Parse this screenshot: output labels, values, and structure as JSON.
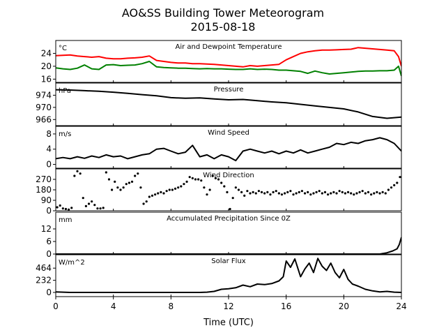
{
  "figure": {
    "title_line1": "AO&SS Building Tower Meteorogram",
    "title_line2": "2015-08-18",
    "xlabel": "Time (UTC)",
    "xlim": [
      0,
      24
    ],
    "xticks": [
      0,
      4,
      8,
      12,
      16,
      20,
      24
    ]
  },
  "chart_data": [
    {
      "type": "line",
      "title": "Air and Dewpoint Temperature",
      "unit": "°C",
      "ylim": [
        15,
        28
      ],
      "yticks": [
        16,
        20,
        24
      ],
      "series": [
        {
          "color": "#ff0000",
          "x": [
            0,
            0.5,
            1,
            1.5,
            2,
            2.5,
            3,
            3.5,
            4,
            4.5,
            5,
            5.5,
            6,
            6.5,
            7,
            7.5,
            8,
            8.5,
            9,
            9.5,
            10,
            10.5,
            11,
            11.5,
            12,
            12.5,
            13,
            13.5,
            14,
            14.5,
            15,
            15.5,
            16,
            16.5,
            17,
            17.5,
            18,
            18.5,
            19,
            19.5,
            20,
            20.5,
            21,
            21.5,
            22,
            22.5,
            23,
            23.5,
            23.8,
            24
          ],
          "y": [
            23.3,
            23.4,
            23.5,
            23.2,
            23.0,
            22.8,
            23.0,
            22.5,
            22.3,
            22.3,
            22.5,
            22.6,
            22.8,
            23.2,
            21.8,
            21.5,
            21.2,
            21.0,
            21.0,
            20.8,
            20.8,
            20.7,
            20.6,
            20.4,
            20.2,
            20.0,
            19.8,
            20.2,
            20.0,
            20.2,
            20.4,
            20.6,
            22.0,
            23.0,
            24.0,
            24.5,
            24.8,
            25.0,
            25.0,
            25.1,
            25.2,
            25.3,
            25.8,
            25.6,
            25.4,
            25.2,
            25.0,
            24.8,
            23.0,
            20.0
          ]
        },
        {
          "color": "#008000",
          "x": [
            0,
            0.5,
            1,
            1.5,
            2,
            2.5,
            3,
            3.5,
            4,
            4.5,
            5,
            5.5,
            6,
            6.5,
            7,
            7.5,
            8,
            8.5,
            9,
            9.5,
            10,
            10.5,
            11,
            11.5,
            12,
            12.5,
            13,
            13.5,
            14,
            14.5,
            15,
            15.5,
            16,
            16.5,
            17,
            17.5,
            18,
            18.5,
            19,
            19.5,
            20,
            20.5,
            21,
            21.5,
            22,
            22.5,
            23,
            23.5,
            23.8,
            24
          ],
          "y": [
            19.5,
            19.2,
            19.0,
            19.4,
            20.4,
            19.2,
            19.0,
            20.4,
            20.5,
            20.2,
            20.3,
            20.4,
            20.8,
            21.5,
            19.8,
            19.6,
            19.5,
            19.4,
            19.4,
            19.3,
            19.2,
            19.3,
            19.2,
            19.2,
            19.1,
            19.0,
            19.0,
            19.2,
            19.0,
            19.1,
            19.0,
            18.8,
            18.8,
            18.6,
            18.4,
            17.8,
            18.5,
            18.0,
            17.6,
            17.8,
            18.0,
            18.2,
            18.4,
            18.5,
            18.5,
            18.6,
            18.6,
            18.8,
            20.0,
            17.0
          ]
        }
      ]
    },
    {
      "type": "line",
      "title": "Pressure",
      "unit": "hPa",
      "ylim": [
        964,
        978
      ],
      "yticks": [
        966,
        970,
        974
      ],
      "series": [
        {
          "color": "#000000",
          "x": [
            0,
            1,
            2,
            3,
            4,
            5,
            6,
            7,
            8,
            9,
            10,
            11,
            12,
            13,
            14,
            15,
            16,
            17,
            18,
            19,
            20,
            21,
            22,
            23,
            24
          ],
          "y": [
            975.8,
            975.7,
            975.5,
            975.3,
            975.0,
            974.6,
            974.2,
            973.8,
            973.2,
            973.0,
            973.1,
            972.8,
            972.5,
            972.6,
            972.2,
            971.8,
            971.5,
            971.0,
            970.5,
            970.0,
            969.5,
            968.5,
            967.0,
            966.4,
            966.8
          ]
        }
      ]
    },
    {
      "type": "line",
      "title": "Wind Speed",
      "unit": "m/s",
      "ylim": [
        -1,
        10
      ],
      "yticks": [
        0,
        4,
        8
      ],
      "series": [
        {
          "color": "#000000",
          "x": [
            0,
            0.5,
            1,
            1.5,
            2,
            2.5,
            3,
            3.5,
            4,
            4.5,
            5,
            5.5,
            6,
            6.5,
            7,
            7.5,
            8,
            8.5,
            9,
            9.5,
            10,
            10.5,
            11,
            11.5,
            12,
            12.5,
            13,
            13.5,
            14,
            14.5,
            15,
            15.5,
            16,
            16.5,
            17,
            17.5,
            18,
            18.5,
            19,
            19.5,
            20,
            20.5,
            21,
            21.5,
            22,
            22.5,
            23,
            23.5,
            24
          ],
          "y": [
            1.5,
            1.8,
            1.5,
            2.0,
            1.6,
            2.2,
            1.8,
            2.5,
            2.0,
            2.2,
            1.5,
            2.0,
            2.5,
            2.8,
            4.0,
            4.2,
            3.5,
            2.8,
            3.2,
            5.0,
            2.0,
            2.5,
            1.5,
            2.5,
            2.0,
            1.0,
            3.5,
            4.0,
            3.5,
            3.0,
            3.5,
            2.8,
            3.5,
            3.0,
            3.8,
            3.0,
            3.5,
            4.0,
            4.5,
            5.5,
            5.2,
            5.8,
            5.5,
            6.2,
            6.5,
            7.0,
            6.5,
            5.5,
            3.5
          ]
        }
      ]
    },
    {
      "type": "scatter",
      "title": "Wind Direction",
      "ylim": [
        0,
        360
      ],
      "yticks": [
        0,
        90,
        180,
        270
      ],
      "series": [
        {
          "color": "#000000",
          "x": [
            0.1,
            0.3,
            0.5,
            0.7,
            0.9,
            1.1,
            1.3,
            1.5,
            1.7,
            1.9,
            2.1,
            2.3,
            2.5,
            2.7,
            2.9,
            3.1,
            3.3,
            3.5,
            3.7,
            3.9,
            4.1,
            4.3,
            4.5,
            4.7,
            4.9,
            5.1,
            5.3,
            5.5,
            5.7,
            5.9,
            6.1,
            6.3,
            6.5,
            6.7,
            6.9,
            7.1,
            7.3,
            7.5,
            7.7,
            7.9,
            8.1,
            8.3,
            8.5,
            8.7,
            8.9,
            9.1,
            9.3,
            9.5,
            9.7,
            9.9,
            10.1,
            10.3,
            10.5,
            10.7,
            10.9,
            11.1,
            11.3,
            11.5,
            11.7,
            11.9,
            12.1,
            12.3,
            12.5,
            12.7,
            12.9,
            13.1,
            13.3,
            13.5,
            13.7,
            13.9,
            14.1,
            14.3,
            14.5,
            14.7,
            14.9,
            15.1,
            15.3,
            15.5,
            15.7,
            15.9,
            16.1,
            16.3,
            16.5,
            16.7,
            16.9,
            17.1,
            17.3,
            17.5,
            17.7,
            17.9,
            18.1,
            18.3,
            18.5,
            18.7,
            18.9,
            19.1,
            19.3,
            19.5,
            19.7,
            19.9,
            20.1,
            20.3,
            20.5,
            20.7,
            20.9,
            21.1,
            21.3,
            21.5,
            21.7,
            21.9,
            22.1,
            22.3,
            22.5,
            22.7,
            22.9,
            23.1,
            23.3,
            23.5,
            23.7,
            23.9
          ],
          "y": [
            30,
            45,
            20,
            15,
            10,
            25,
            300,
            340,
            320,
            110,
            40,
            60,
            80,
            50,
            20,
            20,
            25,
            330,
            270,
            180,
            250,
            200,
            180,
            200,
            230,
            240,
            250,
            300,
            320,
            200,
            60,
            80,
            120,
            130,
            140,
            150,
            160,
            150,
            170,
            180,
            180,
            190,
            200,
            210,
            230,
            250,
            290,
            280,
            270,
            270,
            260,
            200,
            140,
            180,
            300,
            280,
            270,
            240,
            210,
            160,
            15,
            110,
            200,
            180,
            160,
            130,
            170,
            150,
            160,
            150,
            170,
            160,
            150,
            160,
            140,
            160,
            170,
            150,
            140,
            150,
            160,
            170,
            140,
            150,
            160,
            170,
            150,
            160,
            140,
            150,
            160,
            170,
            150,
            160,
            140,
            150,
            160,
            150,
            170,
            160,
            150,
            160,
            150,
            140,
            150,
            160,
            170,
            150,
            160,
            140,
            150,
            160,
            150,
            160,
            150,
            180,
            200,
            220,
            240,
            290
          ]
        }
      ]
    },
    {
      "type": "area",
      "title": "Accumulated Precipitation Since 0Z",
      "unit": "mm",
      "ylim": [
        0,
        20
      ],
      "yticks": [
        0,
        6,
        12
      ],
      "series": [
        {
          "color": "#000000",
          "x": [
            0,
            22.5,
            23.0,
            23.4,
            23.7,
            23.85,
            24
          ],
          "y": [
            0,
            0,
            0.6,
            1.5,
            2.5,
            4.5,
            8.0
          ]
        }
      ]
    },
    {
      "type": "line",
      "title": "Solar Flux",
      "unit": "W/m^2",
      "ylim": [
        -80,
        720
      ],
      "yticks": [
        0,
        232,
        464
      ],
      "series": [
        {
          "color": "#000000",
          "x": [
            0,
            1,
            2,
            3,
            4,
            5,
            6,
            7,
            8,
            9,
            10,
            10.5,
            11,
            11.5,
            12,
            12.5,
            13,
            13.5,
            14,
            14.5,
            15,
            15.5,
            15.8,
            16,
            16.3,
            16.6,
            17,
            17.3,
            17.6,
            17.9,
            18.2,
            18.5,
            18.8,
            19.1,
            19.4,
            19.7,
            20,
            20.3,
            20.6,
            21,
            21.5,
            22,
            22.5,
            23,
            23.5,
            24
          ],
          "y": [
            10,
            0,
            0,
            0,
            0,
            0,
            0,
            0,
            0,
            0,
            0,
            5,
            20,
            60,
            70,
            90,
            140,
            110,
            160,
            150,
            170,
            220,
            300,
            600,
            480,
            640,
            300,
            450,
            560,
            380,
            650,
            500,
            420,
            560,
            380,
            280,
            440,
            250,
            160,
            120,
            60,
            30,
            10,
            20,
            5,
            0
          ]
        }
      ]
    }
  ]
}
